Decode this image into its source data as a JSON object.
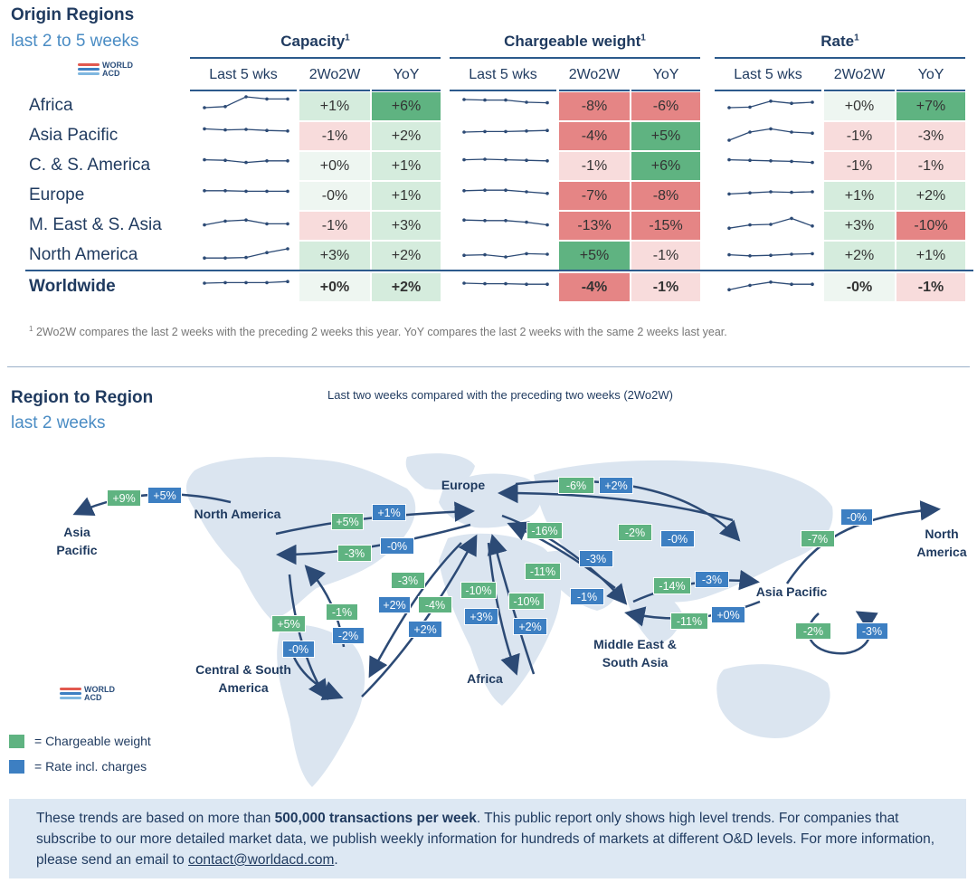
{
  "origin": {
    "title": "Origin Regions",
    "subtitle": "last 2 to 5 weeks",
    "logo_text": "WORLD ACD",
    "groups": [
      {
        "title": "Capacity",
        "sup": "1",
        "columns": [
          "Last 5 wks",
          "2Wo2W",
          "YoY"
        ]
      },
      {
        "title": "Chargeable weight",
        "sup": "1",
        "columns": [
          "Last 5 wks",
          "2Wo2W",
          "YoY"
        ]
      },
      {
        "title": "Rate",
        "sup": "1",
        "columns": [
          "Last 5 wks",
          "2Wo2W",
          "YoY"
        ]
      }
    ],
    "rows": [
      {
        "label": "Africa",
        "bold": false,
        "capacity": {
          "spark": [
            20,
            22,
            40,
            36,
            36
          ],
          "w2": "+1%",
          "yoy": "+6%"
        },
        "cw": {
          "spark": [
            35,
            34,
            34,
            30,
            29
          ],
          "w2": "-8%",
          "yoy": "-6%"
        },
        "rate": {
          "spark": [
            20,
            21,
            32,
            28,
            30
          ],
          "w2": "+0%",
          "yoy": "+7%"
        }
      },
      {
        "label": "Asia Pacific",
        "bold": false,
        "capacity": {
          "spark": [
            36,
            34,
            35,
            33,
            32
          ],
          "w2": "-1%",
          "yoy": "+2%"
        },
        "cw": {
          "spark": [
            30,
            31,
            31,
            32,
            33
          ],
          "w2": "-4%",
          "yoy": "+5%"
        },
        "rate": {
          "spark": [
            15,
            30,
            36,
            30,
            28
          ],
          "w2": "-1%",
          "yoy": "-3%"
        }
      },
      {
        "label": "C. & S. America",
        "bold": false,
        "capacity": {
          "spark": [
            34,
            33,
            29,
            32,
            32
          ],
          "w2": "+0%",
          "yoy": "+1%"
        },
        "cw": {
          "spark": [
            34,
            35,
            34,
            33,
            32
          ],
          "w2": "-1%",
          "yoy": "+6%"
        },
        "rate": {
          "spark": [
            34,
            33,
            32,
            31,
            29
          ],
          "w2": "-1%",
          "yoy": "-1%"
        }
      },
      {
        "label": "Europe",
        "bold": false,
        "capacity": {
          "spark": [
            32,
            32,
            31,
            31,
            31
          ],
          "w2": "-0%",
          "yoy": "+1%"
        },
        "cw": {
          "spark": [
            32,
            33,
            33,
            30,
            27
          ],
          "w2": "-7%",
          "yoy": "-8%"
        },
        "rate": {
          "spark": [
            26,
            28,
            30,
            29,
            30
          ],
          "w2": "+1%",
          "yoy": "+2%"
        }
      },
      {
        "label": "M. East & S. Asia",
        "bold": false,
        "capacity": {
          "spark": [
            24,
            31,
            33,
            26,
            26
          ],
          "w2": "-1%",
          "yoy": "+3%"
        },
        "cw": {
          "spark": [
            33,
            32,
            32,
            29,
            24
          ],
          "w2": "-13%",
          "yoy": "-15%"
        },
        "rate": {
          "spark": [
            18,
            24,
            25,
            36,
            22
          ],
          "w2": "+3%",
          "yoy": "-10%"
        }
      },
      {
        "label": "North America",
        "bold": false,
        "capacity": {
          "spark": [
            18,
            18,
            19,
            28,
            35
          ],
          "w2": "+3%",
          "yoy": "+2%"
        },
        "cw": {
          "spark": [
            23,
            24,
            20,
            26,
            25
          ],
          "w2": "+5%",
          "yoy": "-1%"
        },
        "rate": {
          "spark": [
            24,
            22,
            23,
            25,
            26
          ],
          "w2": "+2%",
          "yoy": "+1%"
        }
      },
      {
        "label": "Worldwide",
        "bold": true,
        "capacity": {
          "spark": [
            30,
            31,
            31,
            31,
            33
          ],
          "w2": "+0%",
          "yoy": "+2%"
        },
        "cw": {
          "spark": [
            30,
            29,
            29,
            28,
            28
          ],
          "w2": "-4%",
          "yoy": "-1%"
        },
        "rate": {
          "spark": [
            18,
            26,
            32,
            28,
            28
          ],
          "w2": "-0%",
          "yoy": "-1%"
        }
      }
    ],
    "footnote": "2Wo2W compares the last 2 weeks with the preceding 2 weeks this year. YoY compares the last 2 weeks with the same 2 weeks last year.",
    "footnote_sup": "1"
  },
  "region": {
    "title": "Region to Region",
    "subtitle": "last 2 weeks",
    "caption": "Last two weeks compared with the preceding two weeks (2Wo2W)",
    "logo_text": "WORLD ACD",
    "regions": {
      "asia_pacific_left": "Asia Pacific",
      "north_america": "North America",
      "europe": "Europe",
      "central_south_america": "Central & South America",
      "africa": "Africa",
      "middle_east_south_asia": "Middle East & South Asia",
      "asia_pacific": "Asia Pacific",
      "north_america_right": "North America"
    },
    "tags": [
      {
        "label": "+9%",
        "kind": "cw"
      },
      {
        "label": "+5%",
        "kind": "rate"
      },
      {
        "label": "+5%",
        "kind": "cw"
      },
      {
        "label": "+1%",
        "kind": "rate"
      },
      {
        "label": "-3%",
        "kind": "cw"
      },
      {
        "label": "-0%",
        "kind": "rate"
      },
      {
        "label": "-6%",
        "kind": "cw"
      },
      {
        "label": "+2%",
        "kind": "rate"
      },
      {
        "label": "-16%",
        "kind": "cw"
      },
      {
        "label": "-2%",
        "kind": "cw"
      },
      {
        "label": "-0%",
        "kind": "rate"
      },
      {
        "label": "-3%",
        "kind": "rate"
      },
      {
        "label": "-11%",
        "kind": "cw"
      },
      {
        "label": "-1%",
        "kind": "rate"
      },
      {
        "label": "-14%",
        "kind": "cw"
      },
      {
        "label": "-3%",
        "kind": "rate"
      },
      {
        "label": "-11%",
        "kind": "cw"
      },
      {
        "label": "+0%",
        "kind": "rate"
      },
      {
        "label": "-7%",
        "kind": "cw"
      },
      {
        "label": "-0%",
        "kind": "rate"
      },
      {
        "label": "-2%",
        "kind": "cw"
      },
      {
        "label": "-3%",
        "kind": "rate"
      },
      {
        "label": "-3%",
        "kind": "cw"
      },
      {
        "label": "+2%",
        "kind": "rate"
      },
      {
        "label": "-4%",
        "kind": "cw"
      },
      {
        "label": "+2%",
        "kind": "rate"
      },
      {
        "label": "-10%",
        "kind": "cw"
      },
      {
        "label": "+3%",
        "kind": "rate"
      },
      {
        "label": "-10%",
        "kind": "cw"
      },
      {
        "label": "+2%",
        "kind": "rate"
      },
      {
        "label": "-1%",
        "kind": "cw"
      },
      {
        "label": "-2%",
        "kind": "rate"
      },
      {
        "label": "+5%",
        "kind": "cw"
      },
      {
        "label": "-0%",
        "kind": "rate"
      }
    ],
    "legend": [
      {
        "label": "= Chargeable weight",
        "color": "#5fb381"
      },
      {
        "label": "= Rate incl. charges",
        "color": "#3d7fc2"
      }
    ]
  },
  "info": {
    "text_before": "These trends are based on more than ",
    "text_bold": "500,000 transactions per week",
    "text_after": ". This public report only shows high level trends. For companies that subscribe to our more detailed market data, we publish weekly information for hundreds of markets at different O&D levels. For more information, please send an email to ",
    "email": "contact@worldacd.com",
    "text_end": "."
  },
  "colors": {
    "pos_strong": "#5fb381",
    "pos_light": "#d5ecdd",
    "neg_strong": "#e58585",
    "neg_light": "#f8dcdc",
    "neutral": "#eef6f1",
    "map_land": "#dbe5f0",
    "arrow": "#2c4a75"
  }
}
